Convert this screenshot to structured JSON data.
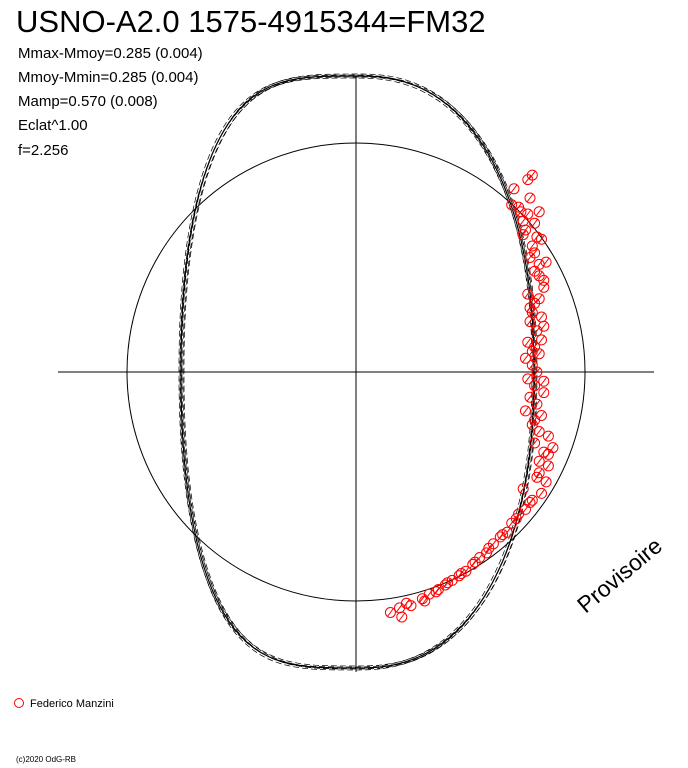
{
  "chart_data": {
    "type": "scatter",
    "title": "USNO-A2.0 1575-4915344=FM32",
    "parameters": [
      "Mmax-Mmoy=0.285 (0.004)",
      "Mmoy-Mmin=0.285 (0.004)",
      "Mamp=0.570 (0.008)",
      "Eclat^1.00",
      "f=2.256"
    ],
    "watermark": "Provisoire",
    "legend": [
      {
        "label": "Federico Manzini",
        "color": "#ff0000",
        "marker": "open-circle"
      }
    ],
    "copyright": "(c)2020 OdG-RB",
    "colors": {
      "points": "#ff0000",
      "curve": "#000000",
      "axes": "#000000"
    },
    "model": {
      "curve_phase_y_range": [
        -0.295,
        0.295
      ],
      "curve_eccentricity_x": 0.22
    },
    "series": [
      {
        "name": "Federico Manzini",
        "points": [
          [
            0.77,
            0.86
          ],
          [
            0.75,
            0.84
          ],
          [
            0.68,
            0.73
          ],
          [
            0.71,
            0.72
          ],
          [
            0.72,
            0.7
          ],
          [
            0.75,
            0.69
          ],
          [
            0.8,
            0.7
          ],
          [
            0.73,
            0.66
          ],
          [
            0.78,
            0.65
          ],
          [
            0.74,
            0.62
          ],
          [
            0.79,
            0.59
          ],
          [
            0.77,
            0.55
          ],
          [
            0.81,
            0.58
          ],
          [
            0.76,
            0.5
          ],
          [
            0.8,
            0.47
          ],
          [
            0.83,
            0.48
          ],
          [
            0.78,
            0.44
          ],
          [
            0.8,
            0.42
          ],
          [
            0.82,
            0.4
          ],
          [
            0.75,
            0.34
          ],
          [
            0.78,
            0.3
          ],
          [
            0.8,
            0.32
          ],
          [
            0.77,
            0.26
          ],
          [
            0.81,
            0.24
          ],
          [
            0.76,
            0.22
          ],
          [
            0.79,
            0.18
          ],
          [
            0.82,
            0.2
          ],
          [
            0.75,
            0.13
          ],
          [
            0.78,
            0.11
          ],
          [
            0.8,
            0.08
          ],
          [
            0.74,
            0.06
          ],
          [
            0.77,
            0.03
          ],
          [
            0.79,
            0.0
          ],
          [
            0.75,
            -0.03
          ],
          [
            0.78,
            -0.06
          ],
          [
            0.82,
            -0.04
          ],
          [
            0.76,
            -0.11
          ],
          [
            0.79,
            -0.14
          ],
          [
            0.74,
            -0.17
          ],
          [
            0.81,
            -0.19
          ],
          [
            0.77,
            -0.23
          ],
          [
            0.8,
            -0.26
          ],
          [
            0.84,
            -0.28
          ],
          [
            0.78,
            -0.31
          ],
          [
            0.82,
            -0.35
          ],
          [
            0.86,
            -0.33
          ],
          [
            0.8,
            -0.39
          ],
          [
            0.84,
            -0.41
          ],
          [
            0.79,
            -0.46
          ],
          [
            0.83,
            -0.48
          ],
          [
            0.81,
            -0.53
          ],
          [
            0.77,
            -0.56
          ],
          [
            0.74,
            -0.6
          ],
          [
            0.71,
            -0.62
          ],
          [
            0.68,
            -0.66
          ],
          [
            0.66,
            -0.7
          ],
          [
            0.63,
            -0.72
          ],
          [
            0.6,
            -0.75
          ],
          [
            0.57,
            -0.79
          ],
          [
            0.54,
            -0.81
          ],
          [
            0.51,
            -0.84
          ],
          [
            0.48,
            -0.87
          ],
          [
            0.45,
            -0.89
          ],
          [
            0.42,
            -0.91
          ],
          [
            0.39,
            -0.93
          ],
          [
            0.36,
            -0.95
          ],
          [
            0.32,
            -0.97
          ],
          [
            0.29,
            -0.99
          ],
          [
            0.22,
            -1.01
          ],
          [
            0.19,
            -1.03
          ],
          [
            0.15,
            -1.05
          ],
          [
            0.2,
            -1.07
          ],
          [
            0.24,
            -1.02
          ],
          [
            0.3,
            -1.0
          ],
          [
            0.35,
            -0.96
          ],
          [
            0.4,
            -0.92
          ],
          [
            0.46,
            -0.88
          ],
          [
            0.52,
            -0.83
          ],
          [
            0.58,
            -0.77
          ],
          [
            0.64,
            -0.71
          ],
          [
            0.7,
            -0.64
          ],
          [
            0.76,
            -0.57
          ],
          [
            0.73,
            -0.51
          ],
          [
            0.8,
            -0.44
          ],
          [
            0.84,
            -0.36
          ],
          [
            0.78,
            -0.21
          ],
          [
            0.82,
            -0.09
          ],
          [
            0.77,
            0.09
          ],
          [
            0.81,
            0.14
          ],
          [
            0.76,
            0.28
          ],
          [
            0.82,
            0.37
          ],
          [
            0.78,
            0.52
          ],
          [
            0.73,
            0.6
          ],
          [
            0.76,
            0.76
          ],
          [
            0.69,
            0.8
          ]
        ]
      }
    ]
  }
}
